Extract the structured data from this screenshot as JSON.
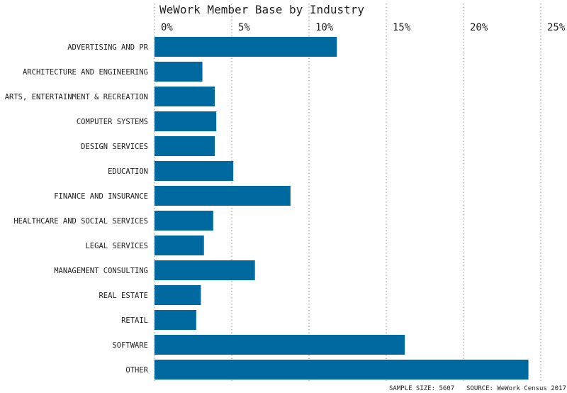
{
  "chart_data": {
    "type": "bar",
    "orientation": "horizontal",
    "title": "WeWork Member Base by Industry",
    "categories": [
      "ADVERTISING AND PR",
      "ARCHITECTURE AND ENGINEERING",
      "ARTS, ENTERTAINMENT & RECREATION",
      "COMPUTER SYSTEMS",
      "DESIGN SERVICES",
      "EDUCATION",
      "FINANCE AND INSURANCE",
      "HEALTHCARE AND SOCIAL SERVICES",
      "LEGAL SERVICES",
      "MANAGEMENT CONSULTING",
      "REAL ESTATE",
      "RETAIL",
      "SOFTWARE",
      "OTHER"
    ],
    "values": [
      11.8,
      3.1,
      3.9,
      4.0,
      3.9,
      5.1,
      8.8,
      3.8,
      3.2,
      6.5,
      3.0,
      2.7,
      16.2,
      24.2
    ],
    "xlim": [
      0,
      25
    ],
    "xticks": [
      0,
      5,
      10,
      15,
      20,
      25
    ],
    "xtick_labels": [
      "0%",
      "5%",
      "10%",
      "15%",
      "20%",
      "25%"
    ],
    "xlabel": "",
    "ylabel": "",
    "grid": true,
    "bar_color": "#006aa0",
    "footnote_sample": "SAMPLE SIZE: 5607",
    "footnote_source": "SOURCE: WeWork Census 2017"
  }
}
